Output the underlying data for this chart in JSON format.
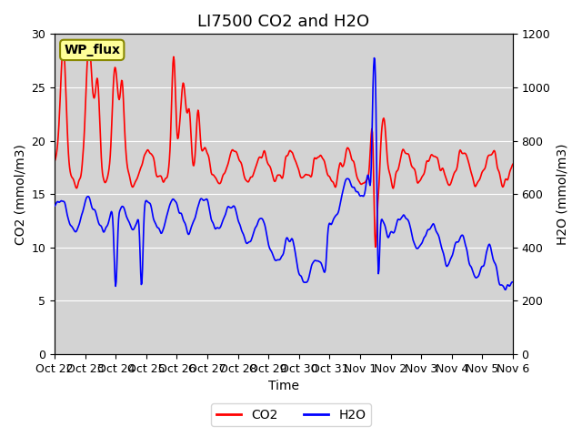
{
  "title": "LI7500 CO2 and H2O",
  "xlabel": "Time",
  "ylabel_left": "CO2 (mmol/m3)",
  "ylabel_right": "H2O (mmol/m3)",
  "ylim_left": [
    0,
    30
  ],
  "ylim_right": [
    0,
    1200
  ],
  "yticks_left": [
    0,
    5,
    10,
    15,
    20,
    25,
    30
  ],
  "yticks_right": [
    0,
    200,
    400,
    600,
    800,
    1000,
    1200
  ],
  "xtick_labels": [
    "Oct 22",
    "Oct 23",
    "Oct 24",
    "Oct 25",
    "Oct 26",
    "Oct 27",
    "Oct 28",
    "Oct 29",
    "Oct 30",
    "Oct 31",
    "Nov 1",
    "Nov 2",
    "Nov 3",
    "Nov 4",
    "Nov 5",
    "Nov 6"
  ],
  "co2_color": "#FF0000",
  "h2o_color": "#0000FF",
  "bg_color": "#D3D3D3",
  "legend_label_co2": "CO2",
  "legend_label_h2o": "H2O",
  "station_label": "WP_flux",
  "title_fontsize": 13,
  "label_fontsize": 10,
  "tick_fontsize": 9
}
